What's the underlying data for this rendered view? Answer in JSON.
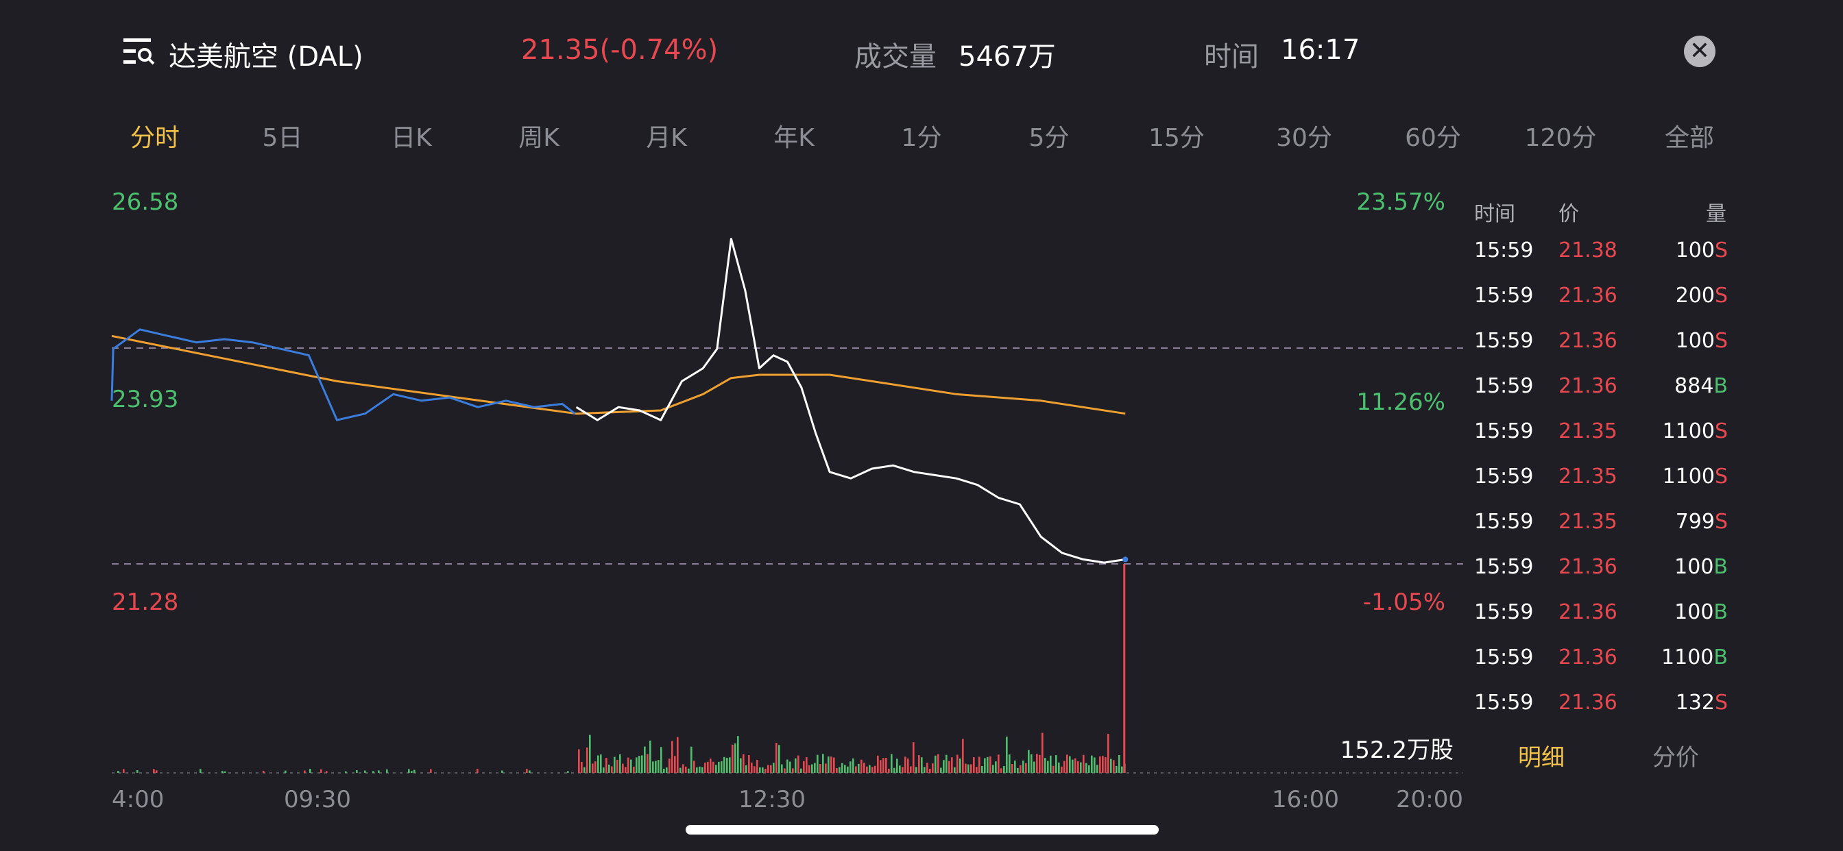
{
  "header": {
    "title": "达美航空 (DAL)",
    "price_change": "21.35(-0.74%)",
    "volume_label": "成交量",
    "volume_value": "5467万",
    "time_label": "时间",
    "time_value": "16:17",
    "close_icon": "close-icon"
  },
  "tabs": [
    "分时",
    "5日",
    "日K",
    "周K",
    "月K",
    "年K",
    "1分",
    "5分",
    "15分",
    "30分",
    "60分",
    "120分",
    "全部"
  ],
  "active_tab": 0,
  "trade_table": {
    "headers": {
      "time": "时间",
      "price": "价",
      "volume": "量"
    },
    "rows": [
      {
        "time": "15:59",
        "price": "21.38",
        "volume": "100",
        "side": "S"
      },
      {
        "time": "15:59",
        "price": "21.36",
        "volume": "200",
        "side": "S"
      },
      {
        "time": "15:59",
        "price": "21.36",
        "volume": "100",
        "side": "S"
      },
      {
        "time": "15:59",
        "price": "21.36",
        "volume": "884",
        "side": "B"
      },
      {
        "time": "15:59",
        "price": "21.35",
        "volume": "1100",
        "side": "S"
      },
      {
        "time": "15:59",
        "price": "21.35",
        "volume": "1100",
        "side": "S"
      },
      {
        "time": "15:59",
        "price": "21.35",
        "volume": "799",
        "side": "S"
      },
      {
        "time": "15:59",
        "price": "21.36",
        "volume": "100",
        "side": "B"
      },
      {
        "time": "15:59",
        "price": "21.36",
        "volume": "100",
        "side": "B"
      },
      {
        "time": "15:59",
        "price": "21.36",
        "volume": "1100",
        "side": "B"
      },
      {
        "time": "15:59",
        "price": "21.36",
        "volume": "132",
        "side": "S"
      }
    ],
    "bottom_tabs": [
      "明细",
      "分价"
    ]
  },
  "colors": {
    "background": "#1e1e24",
    "price_line": "#ffffff",
    "extended_hours_line": "#3b7ddd",
    "avg_line": "#f0a030",
    "up": "#4cc06e",
    "down": "#e8484f",
    "active_tab": "#f3c24a"
  },
  "chart_data": {
    "type": "line",
    "y_left_labels": [
      "26.58",
      "23.93",
      "21.28"
    ],
    "y_right_labels": [
      "23.57%",
      "11.26%",
      "-1.05%"
    ],
    "x_tick_labels": [
      "4:00",
      "09:30",
      "12:30",
      "16:00",
      "20:00"
    ],
    "volume_label": "152.2万股",
    "ylim": [
      21.28,
      26.58
    ],
    "series": [
      {
        "segment": "premarket",
        "x": [
          "4:00",
          "4:01",
          "4:20",
          "4:40",
          "5:00",
          "5:20",
          "5:40",
          "6:00",
          "6:20",
          "6:40",
          "7:00",
          "7:20",
          "7:40",
          "8:00",
          "8:20",
          "8:40",
          "9:00",
          "9:20",
          "9:29"
        ],
        "values": [
          23.8,
          24.6,
          24.9,
          24.8,
          24.7,
          24.75,
          24.7,
          24.6,
          24.5,
          23.5,
          23.6,
          23.9,
          23.8,
          23.85,
          23.7,
          23.8,
          23.7,
          23.75,
          23.6
        ]
      },
      {
        "segment": "regular",
        "x": [
          "09:30",
          "09:45",
          "10:00",
          "10:15",
          "10:30",
          "10:45",
          "11:00",
          "11:10",
          "11:20",
          "11:30",
          "11:40",
          "11:50",
          "12:00",
          "12:10",
          "12:20",
          "12:30",
          "12:45",
          "13:00",
          "13:15",
          "13:30",
          "13:45",
          "14:00",
          "14:15",
          "14:30",
          "14:45",
          "15:00",
          "15:15",
          "15:30",
          "15:45",
          "16:00"
        ],
        "values": [
          23.7,
          23.5,
          23.7,
          23.65,
          23.5,
          24.1,
          24.3,
          24.6,
          26.3,
          25.5,
          24.3,
          24.5,
          24.4,
          24.0,
          23.3,
          22.7,
          22.6,
          22.75,
          22.8,
          22.7,
          22.65,
          22.6,
          22.5,
          22.3,
          22.2,
          21.7,
          21.45,
          21.35,
          21.3,
          21.35
        ]
      },
      {
        "segment": "avg",
        "x": [
          "4:00",
          "6:40",
          "9:30",
          "10:30",
          "11:00",
          "11:20",
          "11:40",
          "12:30",
          "13:00",
          "14:00",
          "15:00",
          "16:00"
        ],
        "values": [
          24.8,
          24.1,
          23.6,
          23.65,
          23.9,
          24.15,
          24.2,
          24.2,
          24.1,
          23.9,
          23.8,
          23.6
        ]
      }
    ]
  }
}
